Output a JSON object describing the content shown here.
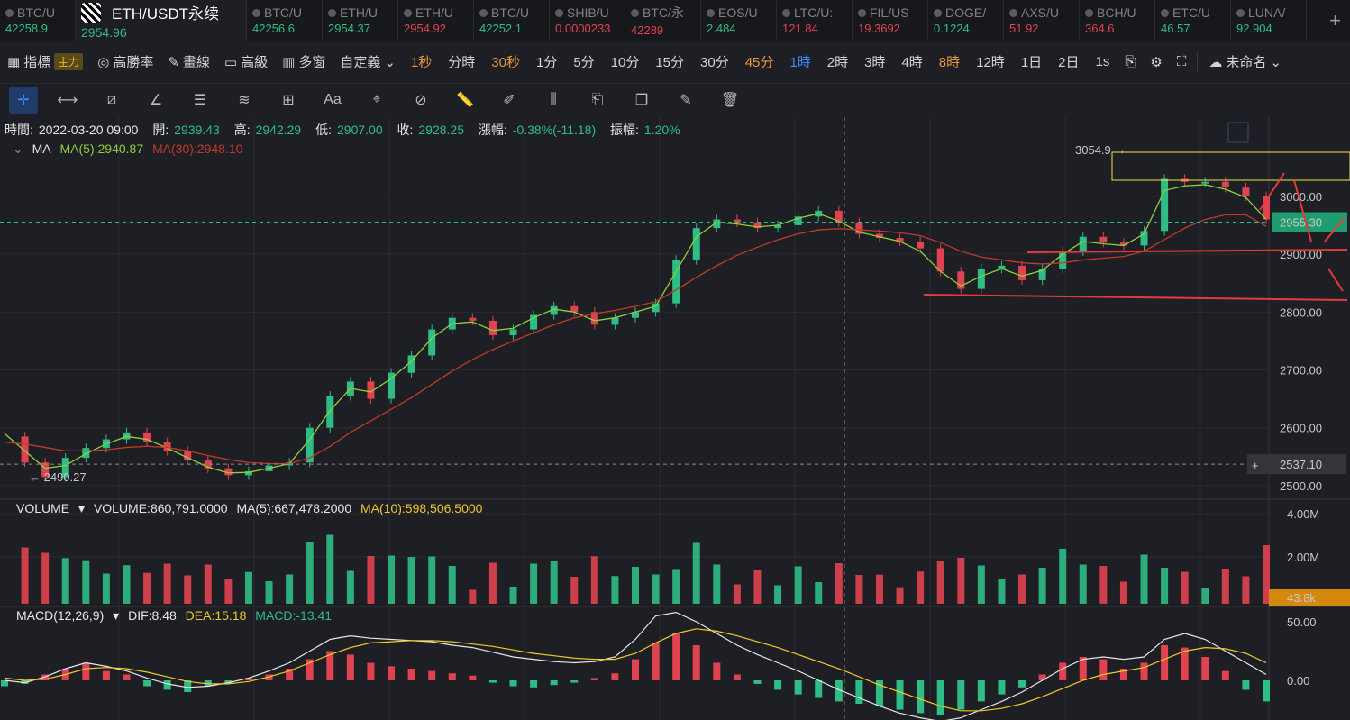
{
  "tickers": [
    {
      "sym": "BTC/U",
      "price": "42258.9",
      "color": "#2ebd85"
    },
    {
      "sym": "ETH/USDT永续",
      "price": "2954.96",
      "color": "#2ebd85",
      "active": true
    },
    {
      "sym": "BTC/U",
      "price": "42256.6",
      "color": "#2ebd85"
    },
    {
      "sym": "ETH/U",
      "price": "2954.37",
      "color": "#2ebd85"
    },
    {
      "sym": "ETH/U",
      "price": "2954.92",
      "color": "#e0424f"
    },
    {
      "sym": "BTC/U",
      "price": "42252.1",
      "color": "#2ebd85"
    },
    {
      "sym": "SHIB/U",
      "price": "0.0000233",
      "color": "#e0424f"
    },
    {
      "sym": "BTC/永",
      "price": "42289",
      "color": "#e0424f"
    },
    {
      "sym": "EOS/U",
      "price": "2.484",
      "color": "#2ebd85"
    },
    {
      "sym": "LTC/U:",
      "price": "121.84",
      "color": "#e0424f"
    },
    {
      "sym": "FIL/US",
      "price": "19.3692",
      "color": "#e0424f"
    },
    {
      "sym": "DOGE/",
      "price": "0.1224",
      "color": "#2ebd85"
    },
    {
      "sym": "AXS/U",
      "price": "51.92",
      "color": "#e0424f"
    },
    {
      "sym": "BCH/U",
      "price": "364.6",
      "color": "#e0424f"
    },
    {
      "sym": "ETC/U",
      "price": "46.57",
      "color": "#2ebd85"
    },
    {
      "sym": "LUNA/",
      "price": "92.904",
      "color": "#2ebd85"
    }
  ],
  "toolbar": {
    "indicator": "指標",
    "indicator_badge": "主力",
    "winrate": "高勝率",
    "draw": "畫線",
    "advanced": "高級",
    "multi": "多窗",
    "custom": "自定義",
    "intervals": [
      {
        "label": "1秒",
        "color": "#e8973b"
      },
      {
        "label": "分時",
        "color": "#d4d5d8"
      },
      {
        "label": "30秒",
        "color": "#e8973b"
      },
      {
        "label": "1分",
        "color": "#d4d5d8"
      },
      {
        "label": "5分",
        "color": "#d4d5d8"
      },
      {
        "label": "10分",
        "color": "#d4d5d8"
      },
      {
        "label": "15分",
        "color": "#d4d5d8"
      },
      {
        "label": "30分",
        "color": "#d4d5d8"
      },
      {
        "label": "45分",
        "color": "#e8973b"
      },
      {
        "label": "1時",
        "color": "#3d8cff"
      },
      {
        "label": "2時",
        "color": "#d4d5d8"
      },
      {
        "label": "3時",
        "color": "#d4d5d8"
      },
      {
        "label": "4時",
        "color": "#d4d5d8"
      },
      {
        "label": "8時",
        "color": "#e8973b"
      },
      {
        "label": "12時",
        "color": "#d4d5d8"
      },
      {
        "label": "1日",
        "color": "#d4d5d8"
      },
      {
        "label": "2日",
        "color": "#d4d5d8"
      },
      {
        "label": "1s",
        "color": "#d4d5d8"
      }
    ],
    "layout_name": "未命名"
  },
  "info": {
    "time_label": "時間:",
    "time": "2022-03-20 09:00",
    "open_label": "開:",
    "open": "2939.43",
    "high_label": "高:",
    "high": "2942.29",
    "low_label": "低:",
    "low": "2907.00",
    "close_label": "收:",
    "close": "2928.25",
    "chg_label": "漲幅:",
    "chg": "-0.38%(-11.18)",
    "amp_label": "振幅:",
    "amp": "1.20%"
  },
  "ma": {
    "name": "MA",
    "ma5": "MA(5):2940.87",
    "ma30": "MA(30):2948.10"
  },
  "volume": {
    "name": "VOLUME",
    "value": "VOLUME:860,791.0000",
    "ma5": "MA(5):667,478.2000",
    "ma10": "MA(10):598,506.5000"
  },
  "macd": {
    "name": "MACD(12,26,9)",
    "dif": "DIF:8.48",
    "dea": "DEA:15.18",
    "macd": "MACD:-13.41"
  },
  "chart_data": {
    "type": "line",
    "title": "ETH/USDT永续",
    "interval": "1時",
    "price_axis": {
      "ticks": [
        "3000.00",
        "2900.00",
        "2800.00",
        "2700.00",
        "2600.00",
        "2500.00"
      ],
      "ylim": [
        2475,
        3090
      ]
    },
    "current_price": "2955.30",
    "crosshair_price": "2537.10",
    "high_marker": "3054.9",
    "low_marker": "2490.27",
    "series": [
      {
        "name": "Close",
        "color": "#2ebd85",
        "values": [
          2585,
          2540,
          2515,
          2548,
          2565,
          2580,
          2592,
          2575,
          2560,
          2545,
          2530,
          2518,
          2525,
          2535,
          2540,
          2600,
          2655,
          2680,
          2650,
          2695,
          2725,
          2770,
          2790,
          2785,
          2760,
          2770,
          2795,
          2810,
          2800,
          2778,
          2790,
          2800,
          2815,
          2890,
          2945,
          2960,
          2955,
          2945,
          2950,
          2965,
          2975,
          2955,
          2935,
          2928,
          2922,
          2910,
          2870,
          2840,
          2875,
          2880,
          2855,
          2875,
          2905,
          2930,
          2920,
          2915,
          2940,
          3030,
          3025,
          3025,
          3015,
          3000,
          2960
        ]
      },
      {
        "name": "MA(5)",
        "color": "#8ccf3c",
        "values": [
          2590,
          2560,
          2530,
          2535,
          2555,
          2572,
          2585,
          2580,
          2565,
          2548,
          2532,
          2522,
          2523,
          2530,
          2538,
          2580,
          2630,
          2668,
          2662,
          2685,
          2715,
          2755,
          2780,
          2783,
          2768,
          2772,
          2790,
          2805,
          2800,
          2785,
          2790,
          2800,
          2810,
          2870,
          2930,
          2955,
          2952,
          2947,
          2950,
          2962,
          2970,
          2957,
          2938,
          2930,
          2922,
          2905,
          2870,
          2845,
          2862,
          2875,
          2862,
          2872,
          2900,
          2922,
          2918,
          2915,
          2935,
          3010,
          3018,
          3020,
          3012,
          2998,
          2960
        ]
      },
      {
        "name": "MA(30)",
        "color": "#c0392b",
        "values": [
          2575,
          2572,
          2566,
          2560,
          2560,
          2562,
          2566,
          2568,
          2566,
          2560,
          2552,
          2545,
          2540,
          2538,
          2538,
          2548,
          2568,
          2592,
          2612,
          2632,
          2652,
          2675,
          2698,
          2718,
          2735,
          2750,
          2764,
          2778,
          2790,
          2797,
          2803,
          2810,
          2818,
          2838,
          2860,
          2880,
          2898,
          2912,
          2925,
          2935,
          2942,
          2944,
          2942,
          2940,
          2937,
          2932,
          2920,
          2905,
          2895,
          2890,
          2885,
          2883,
          2885,
          2890,
          2893,
          2896,
          2905,
          2925,
          2945,
          2960,
          2968,
          2968,
          2948
        ]
      }
    ],
    "volume_axis": {
      "ticks": [
        "4.00M",
        "2.00M"
      ],
      "current": "43.8k"
    },
    "volume_ma_colors": {
      "ma5": "#e6e7e9",
      "ma10": "#f0c92b"
    },
    "macd_axis": {
      "ticks": [
        "50.00",
        "0.00"
      ]
    },
    "macd_hist": [
      -5,
      -3,
      5,
      10,
      15,
      8,
      5,
      -5,
      -8,
      -10,
      -5,
      -3,
      2,
      5,
      10,
      18,
      25,
      22,
      15,
      12,
      10,
      8,
      6,
      4,
      -2,
      -5,
      -6,
      -4,
      -2,
      2,
      6,
      18,
      32,
      40,
      30,
      15,
      5,
      -3,
      -8,
      -12,
      -15,
      -18,
      -20,
      -22,
      -25,
      -28,
      -30,
      -25,
      -18,
      -12,
      -6,
      5,
      15,
      20,
      18,
      10,
      15,
      30,
      28,
      20,
      8,
      -8,
      -18
    ],
    "macd_dif": [
      0,
      -2,
      3,
      10,
      15,
      12,
      8,
      2,
      -3,
      -6,
      -5,
      -2,
      2,
      8,
      15,
      25,
      35,
      38,
      36,
      35,
      34,
      33,
      30,
      28,
      24,
      20,
      18,
      16,
      15,
      16,
      20,
      35,
      55,
      58,
      50,
      40,
      30,
      22,
      15,
      8,
      0,
      -8,
      -15,
      -22,
      -28,
      -32,
      -35,
      -32,
      -25,
      -18,
      -10,
      0,
      10,
      18,
      20,
      18,
      20,
      35,
      40,
      35,
      25,
      15,
      5
    ],
    "macd_dea": [
      2,
      0,
      1,
      5,
      10,
      11,
      10,
      7,
      3,
      -1,
      -3,
      -3,
      -1,
      3,
      8,
      15,
      22,
      28,
      32,
      33,
      34,
      34,
      33,
      31,
      29,
      26,
      23,
      21,
      19,
      18,
      18,
      23,
      32,
      40,
      44,
      42,
      38,
      33,
      28,
      22,
      16,
      10,
      3,
      -4,
      -10,
      -16,
      -22,
      -26,
      -26,
      -24,
      -20,
      -14,
      -7,
      0,
      5,
      8,
      11,
      18,
      25,
      28,
      27,
      23,
      15
    ]
  }
}
